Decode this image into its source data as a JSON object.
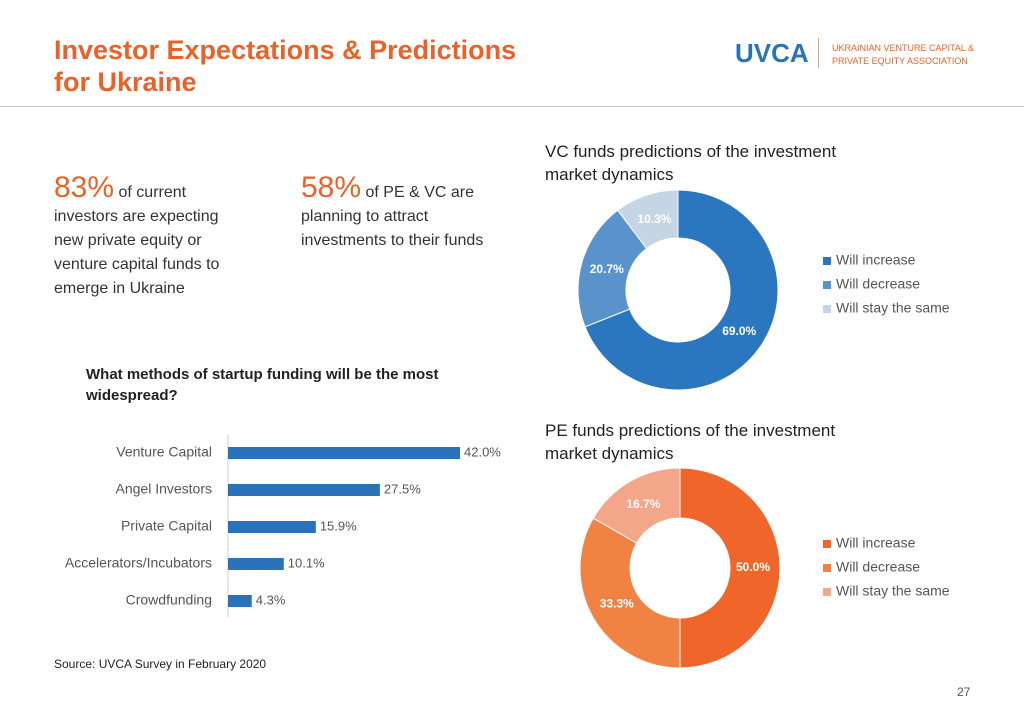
{
  "header": {
    "title": "Investor Expectations & Predictions for Ukraine",
    "logo": "UVCA",
    "org_line1": "UKRAINIAN VENTURE CAPITAL &",
    "org_line2": "PRIVATE EQUITY ASSOCIATION"
  },
  "stats": [
    {
      "number": "83%",
      "text": "of current investors are expecting new private equity or venture capital funds to emerge in Ukraine"
    },
    {
      "number": "58%",
      "text": "of PE & VC are planning to attract investments to their funds"
    }
  ],
  "chart_data": [
    {
      "type": "hbar",
      "title": "What methods of startup funding will be the most widespread?",
      "categories": [
        "Venture Capital",
        "Angel Investors",
        "Private Capital",
        "Accelerators/Incubators",
        "Crowdfunding"
      ],
      "values": [
        42.0,
        27.5,
        15.9,
        10.1,
        4.3
      ],
      "value_labels": [
        "42.0%",
        "27.5%",
        "15.9%",
        "10.1%",
        "4.3%"
      ],
      "color": "#2a73bb"
    },
    {
      "type": "donut",
      "title": "VC funds predictions of the investment market dynamics",
      "categories": [
        "Will increase",
        "Will decrease",
        "Will stay the same"
      ],
      "values": [
        69.0,
        20.7,
        10.3
      ],
      "value_labels": [
        "69.0%",
        "20.7%",
        "10.3%"
      ],
      "colors": [
        "#2a76bf",
        "#5a93cc",
        "#c5d5e3"
      ]
    },
    {
      "type": "donut",
      "title": "PE funds predictions of the investment market dynamics",
      "categories": [
        "Will increase",
        "Will decrease",
        "Will stay the same"
      ],
      "values": [
        50.0,
        33.3,
        16.7
      ],
      "value_labels": [
        "50.0%",
        "33.3%",
        "16.7%"
      ],
      "colors": [
        "#f0652a",
        "#f08244",
        "#f4a688"
      ]
    }
  ],
  "source": "Source: UVCA Survey in February 2020",
  "page_number": "27"
}
